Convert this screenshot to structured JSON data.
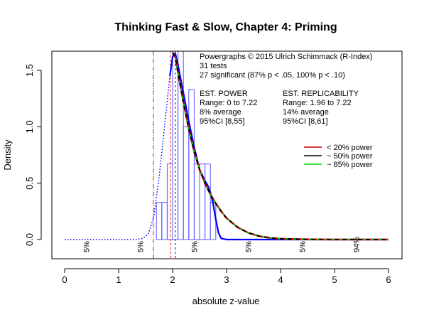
{
  "chart_data": {
    "type": "histogram+density",
    "title": "Thinking Fast & Slow, Chapter 4: Priming",
    "xlabel": "absolute z-value",
    "ylabel": "Density",
    "xlim": [
      0,
      6
    ],
    "ylim": [
      0,
      1.65
    ],
    "x_ticks": [
      0,
      1,
      2,
      3,
      4,
      5,
      6
    ],
    "y_ticks": [
      0.0,
      0.5,
      1.0,
      1.5
    ],
    "x_tick_labels": [
      "0",
      "1",
      "2",
      "3",
      "4",
      "5",
      "6"
    ],
    "y_tick_labels": [
      "0.0",
      "0.5",
      "1.0",
      "1.5"
    ],
    "histogram": {
      "bin_width": 0.1,
      "bins": [
        {
          "x0": 1.7,
          "density": 0.33
        },
        {
          "x0": 1.8,
          "density": 0.33
        },
        {
          "x0": 1.9,
          "density": 0.67
        },
        {
          "x0": 2.0,
          "density": 1.67
        },
        {
          "x0": 2.1,
          "density": 1.67
        },
        {
          "x0": 2.2,
          "density": 1.0
        },
        {
          "x0": 2.3,
          "density": 1.33
        },
        {
          "x0": 2.4,
          "density": 0.67
        },
        {
          "x0": 2.5,
          "density": 0.67
        },
        {
          "x0": 2.6,
          "density": 0.67
        },
        {
          "x0": 2.7,
          "density": 0.33
        }
      ]
    },
    "vlines": [
      {
        "x": 1.645,
        "color": "#ff0000",
        "style": "dash-dot"
      },
      {
        "x": 1.96,
        "color": "#ff0000",
        "style": "dashed"
      },
      {
        "x": 2.05,
        "color": "#0000ff",
        "style": "dashed"
      }
    ],
    "density_curve": {
      "name": "observed density",
      "color": "#0000ff",
      "points": [
        [
          0,
          0
        ],
        [
          1.3,
          0
        ],
        [
          1.45,
          0.01
        ],
        [
          1.55,
          0.05
        ],
        [
          1.65,
          0.2
        ],
        [
          1.75,
          0.55
        ],
        [
          1.85,
          1.0
        ],
        [
          1.95,
          1.45
        ],
        [
          2.0,
          1.62
        ],
        [
          2.05,
          1.65
        ],
        [
          2.1,
          1.55
        ],
        [
          2.2,
          1.3
        ],
        [
          2.3,
          1.05
        ],
        [
          2.4,
          0.82
        ],
        [
          2.5,
          0.62
        ],
        [
          2.6,
          0.52
        ],
        [
          2.65,
          0.48
        ],
        [
          2.7,
          0.42
        ],
        [
          2.75,
          0.32
        ],
        [
          2.8,
          0.18
        ],
        [
          2.85,
          0.06
        ],
        [
          2.9,
          0.01
        ],
        [
          3.0,
          0
        ],
        [
          6.0,
          0
        ]
      ]
    },
    "power_curves": [
      {
        "name": "< 20% power",
        "color": "#cc0000"
      },
      {
        "name": "~ 50% power",
        "color": "#000000"
      },
      {
        "name": "~ 85% power",
        "color": "#00dd00"
      }
    ],
    "fitted_curve_points": [
      [
        2.0,
        1.66
      ],
      [
        2.05,
        1.62
      ],
      [
        2.1,
        1.48
      ],
      [
        2.2,
        1.22
      ],
      [
        2.3,
        0.98
      ],
      [
        2.4,
        0.78
      ],
      [
        2.5,
        0.62
      ],
      [
        2.6,
        0.5
      ],
      [
        2.7,
        0.4
      ],
      [
        2.8,
        0.32
      ],
      [
        2.9,
        0.25
      ],
      [
        3.0,
        0.19
      ],
      [
        3.2,
        0.11
      ],
      [
        3.4,
        0.06
      ],
      [
        3.6,
        0.03
      ],
      [
        3.8,
        0.015
      ],
      [
        4.0,
        0.007
      ],
      [
        4.5,
        0.001
      ],
      [
        5.0,
        0
      ],
      [
        6.0,
        0
      ]
    ],
    "segment_percent_labels": [
      {
        "x": 0.4,
        "label": "5%"
      },
      {
        "x": 1.4,
        "label": "5%"
      },
      {
        "x": 2.4,
        "label": "5%"
      },
      {
        "x": 3.4,
        "label": "5%"
      },
      {
        "x": 4.4,
        "label": "5%"
      },
      {
        "x": 5.4,
        "label": "94%"
      }
    ],
    "annotation": {
      "header": "Powergraphs © 2015 Ulrich Schimmack (R-Index)",
      "tests": "31 tests",
      "significant": "27 significant (87% p < .05, 100% p < .10)",
      "power_title": "EST. POWER",
      "power_range": "Range: 0 to 7.22",
      "power_avg": "8% average",
      "power_ci": "95%CI [8,55]",
      "repl_title": "EST. REPLICABILITY",
      "repl_range": "Range: 1.96 to 7.22",
      "repl_avg": "14% average",
      "repl_ci": "95%CI [8,61]"
    },
    "legend": {
      "position": "right",
      "entries": [
        {
          "label": "< 20% power",
          "color": "#cc0000"
        },
        {
          "label": "~ 50% power",
          "color": "#000000"
        },
        {
          "label": "~ 85% power",
          "color": "#00dd00"
        }
      ]
    }
  }
}
